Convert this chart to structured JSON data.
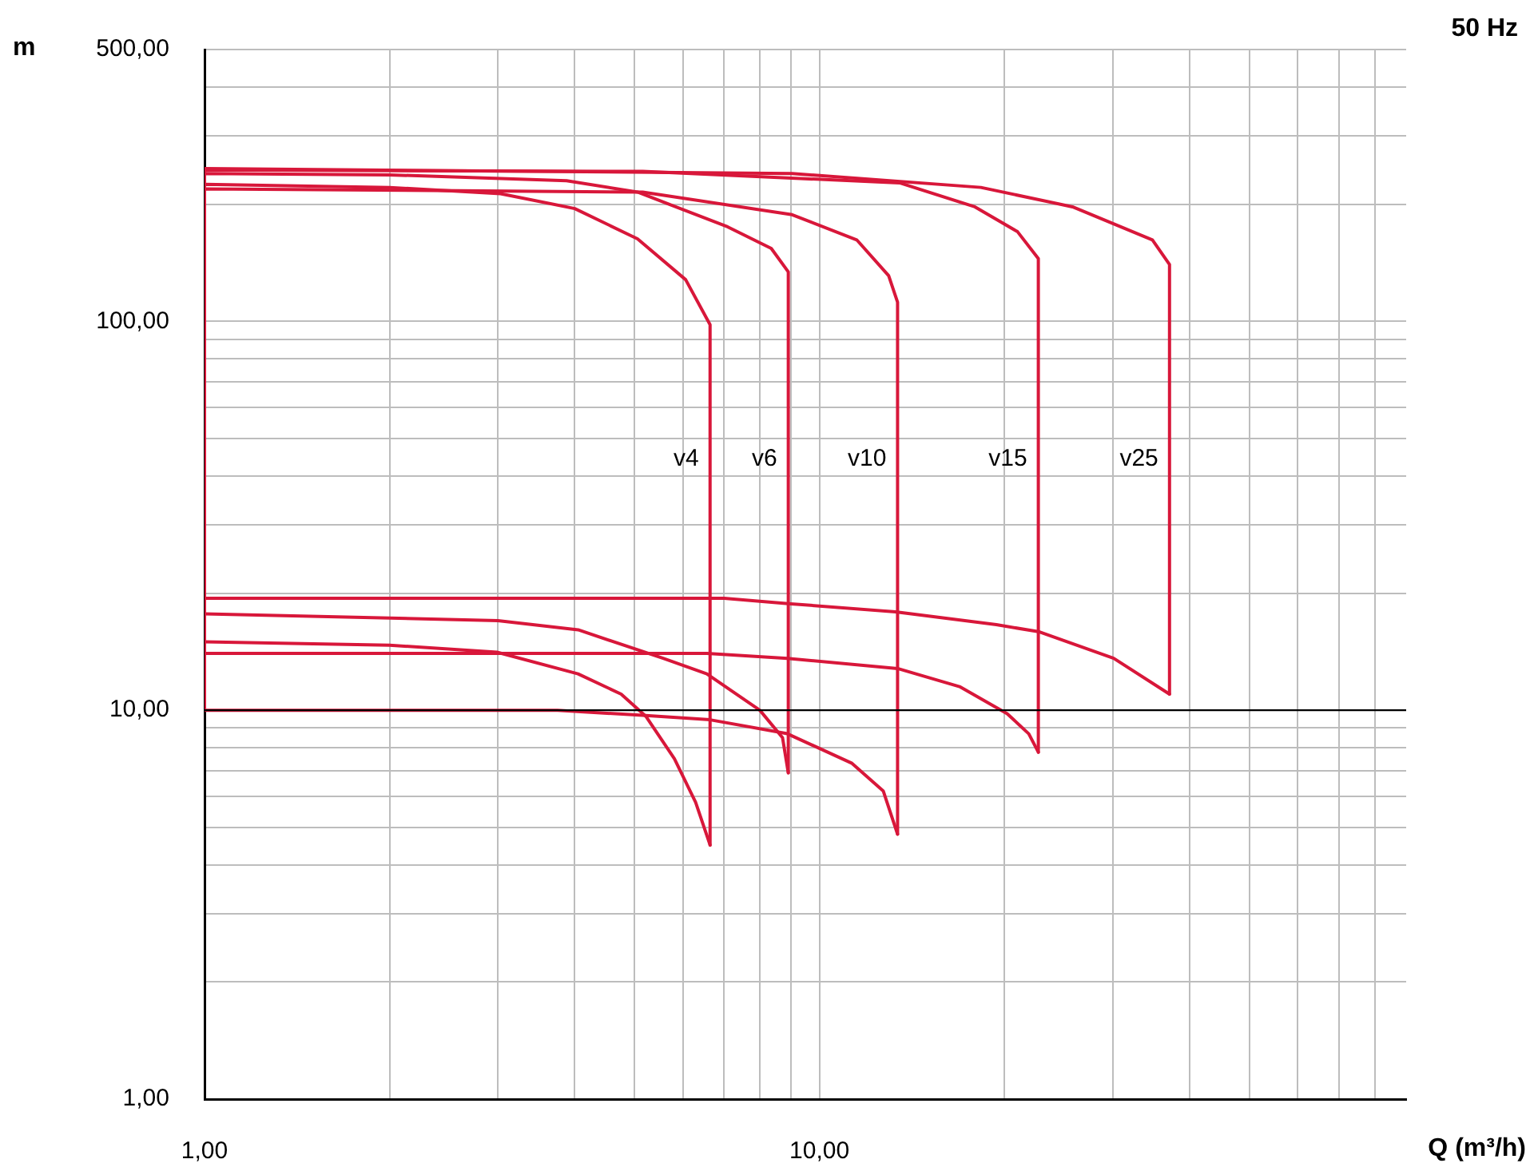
{
  "chart_data": {
    "type": "line",
    "title": "50 Hz",
    "xlabel": "Q (m³/h)",
    "ylabel": "m",
    "log": "xy",
    "grid": true,
    "legend": false,
    "marker": "none",
    "line_style": "solid",
    "xlim": [
      1,
      90
    ],
    "ylim": [
      1,
      500
    ],
    "xticks": [
      {
        "value": 1,
        "label": "1,00"
      },
      {
        "value": 2,
        "label": null
      },
      {
        "value": 3,
        "label": null
      },
      {
        "value": 4,
        "label": null
      },
      {
        "value": 5,
        "label": null
      },
      {
        "value": 6,
        "label": null
      },
      {
        "value": 7,
        "label": null
      },
      {
        "value": 8,
        "label": null
      },
      {
        "value": 9,
        "label": null
      },
      {
        "value": 10,
        "label": "10,00"
      },
      {
        "value": 20,
        "label": null
      },
      {
        "value": 30,
        "label": null
      },
      {
        "value": 40,
        "label": null
      },
      {
        "value": 50,
        "label": null
      },
      {
        "value": 60,
        "label": null
      },
      {
        "value": 70,
        "label": null
      },
      {
        "value": 80,
        "label": null
      }
    ],
    "yticks": [
      {
        "value": 1,
        "label": "1,00"
      },
      {
        "value": 2,
        "label": null
      },
      {
        "value": 3,
        "label": null
      },
      {
        "value": 4,
        "label": null
      },
      {
        "value": 5,
        "label": null
      },
      {
        "value": 6,
        "label": null
      },
      {
        "value": 7,
        "label": null
      },
      {
        "value": 8,
        "label": null
      },
      {
        "value": 9,
        "label": null
      },
      {
        "value": 10,
        "label": "10,00"
      },
      {
        "value": 20,
        "label": null
      },
      {
        "value": 30,
        "label": null
      },
      {
        "value": 40,
        "label": null
      },
      {
        "value": 50,
        "label": null
      },
      {
        "value": 60,
        "label": null
      },
      {
        "value": 70,
        "label": null
      },
      {
        "value": 80,
        "label": null
      },
      {
        "value": 90,
        "label": null
      },
      {
        "value": 100,
        "label": "100,00"
      },
      {
        "value": 200,
        "label": null
      },
      {
        "value": 300,
        "label": null
      },
      {
        "value": 400,
        "label": null
      },
      {
        "value": 500,
        "label": "500,00"
      }
    ],
    "ref_lines": [
      {
        "axis": "y",
        "value": 10,
        "color": "#000000"
      }
    ],
    "series": [
      {
        "name": "v4",
        "color": "#d8173a",
        "x": [
          1,
          1,
          2.0,
          3.03,
          4.0,
          5.06,
          6.06,
          6.64,
          6.64
        ],
        "values": [
          15.0,
          225,
          221,
          213,
          195,
          163,
          128,
          98,
          4.5
        ]
      },
      {
        "color": "#d8173a",
        "x": [
          1,
          2.0,
          2.99,
          4.05,
          4.76,
          5.22,
          5.81,
          6.29,
          6.64
        ],
        "values": [
          15.0,
          14.7,
          14.1,
          12.4,
          11.0,
          9.65,
          7.5,
          5.8,
          4.5
        ]
      },
      {
        "name": "v6",
        "color": "#d8173a",
        "x": [
          1,
          1,
          2.0,
          3.88,
          5.06,
          7.09,
          8.35,
          8.9,
          8.9
        ],
        "values": [
          17.7,
          240,
          238,
          230,
          215,
          175,
          154,
          134,
          6.9
        ]
      },
      {
        "color": "#d8173a",
        "x": [
          1,
          3.0,
          4.05,
          5.57,
          6.56,
          8.0,
          8.71,
          8.9
        ],
        "values": [
          17.7,
          17.0,
          16.1,
          13.6,
          12.4,
          10,
          8.5,
          6.9
        ]
      },
      {
        "name": "v10",
        "color": "#d8173a",
        "x": [
          1,
          1,
          5.16,
          9.03,
          11.5,
          12.96,
          13.4,
          13.4
        ],
        "values": [
          10,
          219,
          215,
          188,
          162,
          131,
          112,
          4.8
        ]
      },
      {
        "color": "#d8173a",
        "x": [
          1,
          3.75,
          5.16,
          6.64,
          8.87,
          11.3,
          12.7,
          13.4
        ],
        "values": [
          10,
          10,
          9.7,
          9.45,
          8.7,
          7.3,
          6.2,
          4.8
        ]
      },
      {
        "name": "v15",
        "color": "#d8173a",
        "x": [
          1,
          1,
          5.16,
          13.5,
          17.9,
          21.0,
          22.7,
          22.7
        ],
        "values": [
          14.0,
          245,
          243,
          227,
          197,
          170,
          145,
          7.8
        ]
      },
      {
        "color": "#d8173a",
        "x": [
          1,
          6.56,
          8.87,
          13.4,
          16.9,
          20.2,
          21.9,
          22.7
        ],
        "values": [
          14.0,
          14.0,
          13.6,
          12.8,
          11.5,
          9.8,
          8.7,
          7.8
        ]
      },
      {
        "name": "v25",
        "color": "#d8173a",
        "x": [
          1,
          1,
          9.03,
          18.3,
          25.8,
          34.8,
          37.1,
          37.1
        ],
        "values": [
          19.4,
          247,
          240,
          221,
          197,
          162,
          140,
          11.0
        ]
      },
      {
        "color": "#d8173a",
        "x": [
          1,
          7,
          8.9,
          13.3,
          19.4,
          22.8,
          30.1,
          37.1
        ],
        "values": [
          19.4,
          19.4,
          18.8,
          17.9,
          16.6,
          15.9,
          13.6,
          11.0
        ]
      }
    ]
  }
}
